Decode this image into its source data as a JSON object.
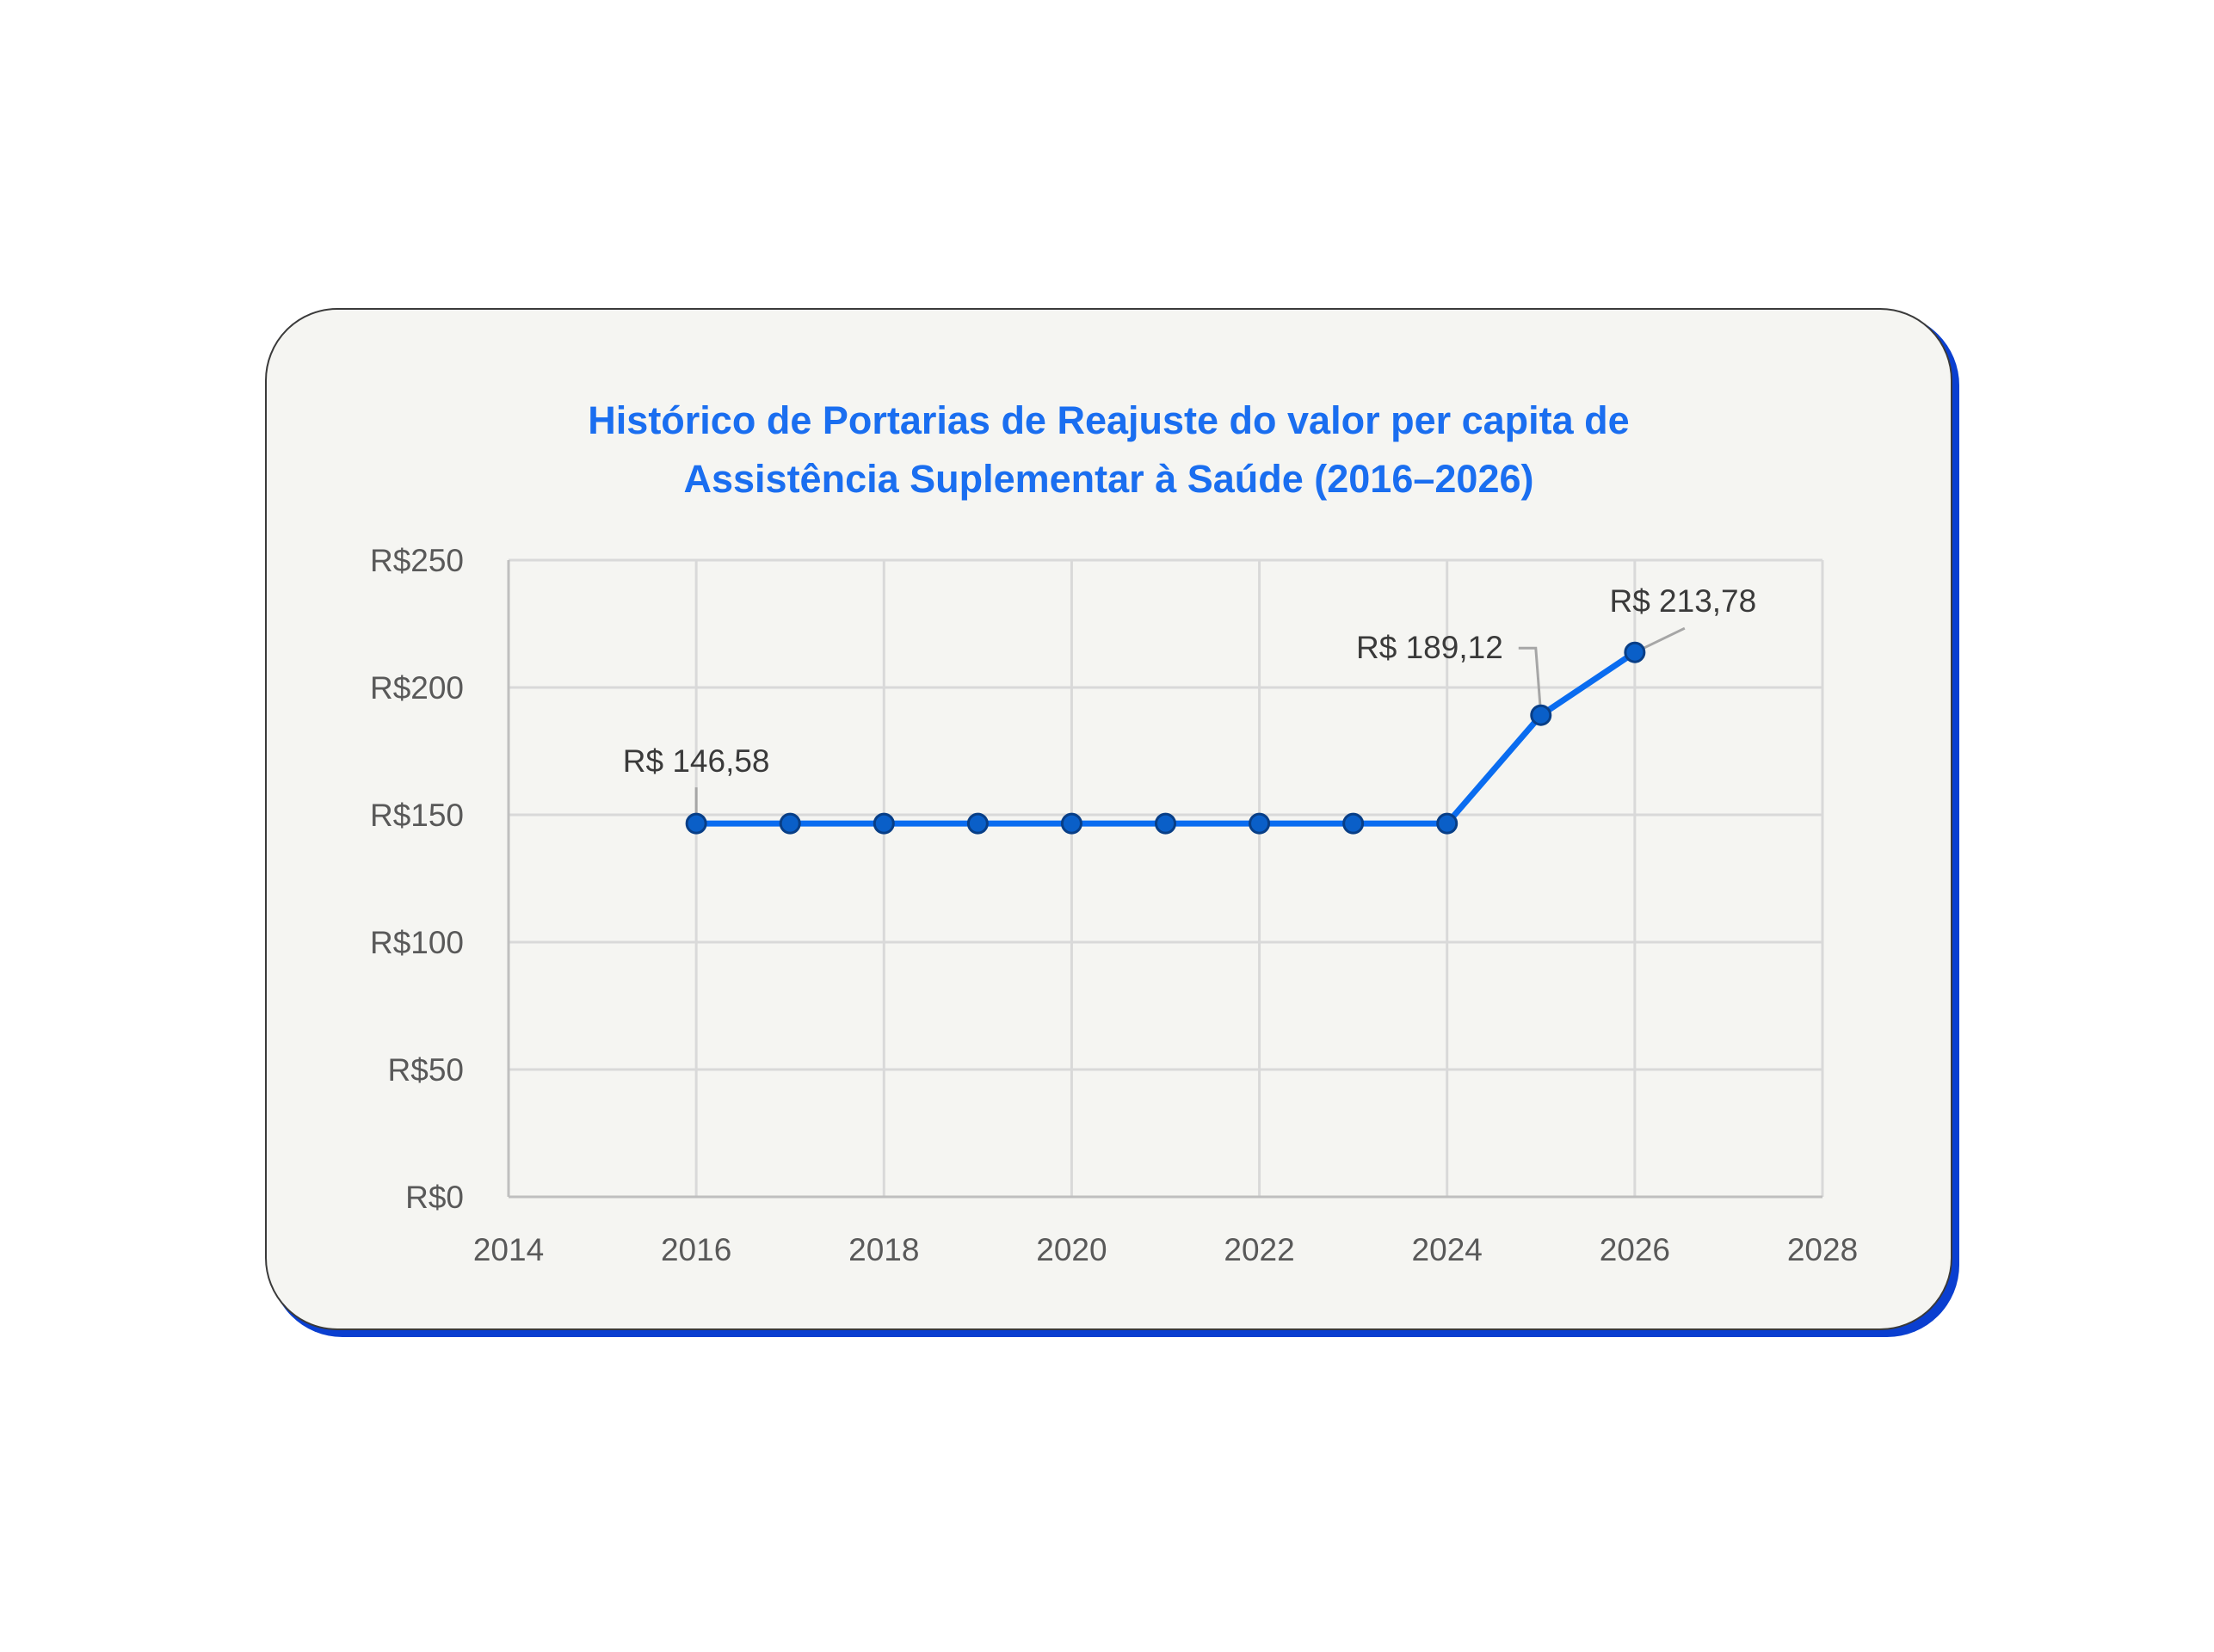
{
  "chart_data": {
    "type": "line",
    "title_line1": "Histórico de Portarias de Reajuste do valor per capita de",
    "title_line2": "Assistência Suplementar à Saúde (2016–2026)",
    "xlabel": "",
    "ylabel": "",
    "xlim": [
      2014,
      2028
    ],
    "ylim": [
      0,
      250
    ],
    "x_ticks": [
      2014,
      2016,
      2018,
      2020,
      2022,
      2024,
      2026,
      2028
    ],
    "y_ticks": [
      0,
      50,
      100,
      150,
      200,
      250
    ],
    "y_tick_labels": [
      "R$0",
      "R$50",
      "R$100",
      "R$150",
      "R$200",
      "R$250"
    ],
    "grid": true,
    "series": [
      {
        "name": "Valor per capita",
        "color": "#0a6cf0",
        "marker_color": "#0a5fc8",
        "x": [
          2016,
          2017,
          2018,
          2019,
          2020,
          2021,
          2022,
          2023,
          2024,
          2025,
          2026
        ],
        "y": [
          146.58,
          146.58,
          146.58,
          146.58,
          146.58,
          146.58,
          146.58,
          146.58,
          146.58,
          189.12,
          213.78
        ]
      }
    ],
    "annotations": [
      {
        "x": 2016,
        "y": 146.58,
        "text": "R$ 146,58"
      },
      {
        "x": 2025,
        "y": 189.12,
        "text": "R$ 189,12"
      },
      {
        "x": 2026,
        "y": 213.78,
        "text": "R$ 213,78"
      }
    ]
  }
}
